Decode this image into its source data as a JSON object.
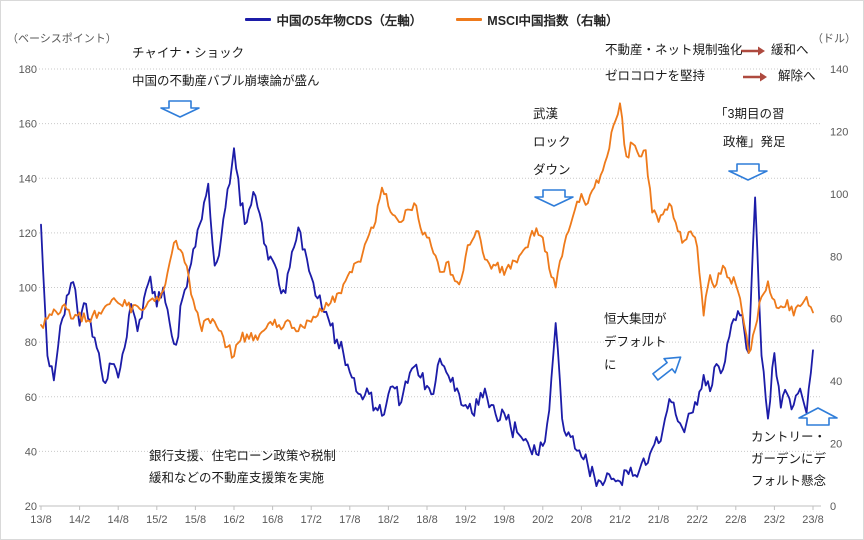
{
  "chart": {
    "background": "#ffffff",
    "gridline_color": "#c9c9c9",
    "axis_line_color": "#bfbfbf",
    "axis_text_color": "#595959",
    "annotation_text_color": "#1a1a1a",
    "blue_arrow_color": "#2f7dd9",
    "red_arrow_color": "#ae4a3f"
  },
  "chart_data": {
    "type": "line",
    "title": "",
    "grid": "horizontal-dotted",
    "legend_position": "top-center",
    "x_start_label": "13/8",
    "x_end_label": "23/8",
    "x_interval_months": 1,
    "x_tick_labels": [
      "13/8",
      "14/2",
      "14/8",
      "15/2",
      "15/8",
      "16/2",
      "16/8",
      "17/2",
      "17/8",
      "18/2",
      "18/8",
      "19/2",
      "19/8",
      "20/2",
      "20/8",
      "21/2",
      "21/8",
      "22/2",
      "22/8",
      "23/2",
      "23/8"
    ],
    "left_axis": {
      "unit": "（ベーシスポイント）",
      "ticks": [
        180,
        160,
        140,
        120,
        100,
        80,
        60,
        40,
        20
      ],
      "range": [
        20,
        180
      ]
    },
    "right_axis": {
      "unit": "（ドル）",
      "ticks": [
        140,
        120,
        100,
        80,
        60,
        40,
        20,
        0
      ],
      "range": [
        0,
        140
      ]
    },
    "series": [
      {
        "name": "中国の5年物CDS（左軸）",
        "axis": "left",
        "color": "#1c1ca8",
        "noise": 3.2,
        "seed": 1,
        "monthly_values": [
          123,
          75,
          66,
          86,
          97,
          102,
          86,
          94,
          82,
          76,
          65,
          72,
          67,
          78,
          94,
          84,
          96,
          104,
          93,
          100,
          87,
          79,
          96,
          106,
          115,
          125,
          138,
          108,
          118,
          136,
          151,
          130,
          124,
          135,
          127,
          115,
          110,
          101,
          98,
          113,
          122,
          114,
          104,
          96,
          91,
          86,
          81,
          76,
          69,
          62,
          59,
          61,
          56,
          53,
          61,
          63,
          58,
          65,
          71,
          67,
          64,
          61,
          74,
          69,
          67,
          61,
          57,
          54,
          57,
          63,
          57,
          51,
          54,
          49,
          47,
          44,
          41,
          39,
          42,
          55,
          87,
          52,
          47,
          41,
          38,
          35,
          31,
          29,
          32,
          30,
          29,
          33,
          31,
          33,
          35,
          41,
          43,
          52,
          58,
          51,
          47,
          54,
          57,
          68,
          62,
          72,
          70,
          82,
          88,
          90,
          76,
          133,
          75,
          52,
          76,
          56,
          61,
          57,
          63,
          54,
          77
        ]
      },
      {
        "name": "MSCI中国指数（右軸）",
        "axis": "right",
        "color": "#ee7a1b",
        "noise": 2.0,
        "seed": 2,
        "monthly_values": [
          58,
          60,
          63,
          62,
          63,
          60,
          62,
          59,
          61,
          62,
          64,
          66,
          65,
          66,
          62,
          64,
          63,
          66,
          67,
          69,
          78,
          85,
          81,
          73,
          63,
          56,
          60,
          59,
          56,
          51,
          48,
          53,
          55,
          53,
          55,
          57,
          58,
          58,
          59,
          57,
          56,
          57,
          59,
          61,
          63,
          65,
          68,
          71,
          75,
          78,
          81,
          87,
          91,
          102,
          96,
          93,
          91,
          95,
          97,
          89,
          86,
          81,
          75,
          78,
          74,
          71,
          80,
          85,
          88,
          79,
          76,
          78,
          74,
          76,
          78,
          82,
          86,
          89,
          86,
          76,
          70,
          80,
          88,
          95,
          100,
          97,
          102,
          106,
          112,
          122,
          129,
          112,
          116,
          112,
          114,
          94,
          91,
          95,
          96,
          88,
          85,
          88,
          83,
          61,
          74,
          71,
          77,
          73,
          71,
          62,
          49,
          57,
          67,
          72,
          66,
          64,
          66,
          61,
          64,
          67,
          62
        ]
      }
    ],
    "annotations": {
      "texts": [
        {
          "text": "チャイナ・ショック",
          "x": 131,
          "y": 45
        },
        {
          "text": "中国の不動産バブル崩壊論が盛ん",
          "x": 131,
          "y": 73
        },
        {
          "text": "武漢",
          "x": 532,
          "y": 106
        },
        {
          "text": "ロック",
          "x": 532,
          "y": 134
        },
        {
          "text": "ダウン",
          "x": 532,
          "y": 162
        },
        {
          "text": "不動産・ネット規制強化",
          "x": 604,
          "y": 42
        },
        {
          "text": "緩和へ",
          "x": 770,
          "y": 42
        },
        {
          "text": "ゼロコロナを堅持",
          "x": 604,
          "y": 68
        },
        {
          "text": "解除へ",
          "x": 777,
          "y": 68
        },
        {
          "text": "「3期目の習",
          "x": 714,
          "y": 106
        },
        {
          "text": "政権」発足",
          "x": 722,
          "y": 134
        },
        {
          "text": "恒大集団が",
          "x": 603,
          "y": 311
        },
        {
          "text": "デフォルト",
          "x": 603,
          "y": 334
        },
        {
          "text": "に",
          "x": 603,
          "y": 357
        },
        {
          "text": "カントリー・",
          "x": 750,
          "y": 429
        },
        {
          "text": "ガーデンにデ",
          "x": 750,
          "y": 451
        },
        {
          "text": "フォルト懸念",
          "x": 750,
          "y": 473
        },
        {
          "text": "銀行支援、住宅ローン政策や税制",
          "x": 148,
          "y": 448
        },
        {
          "text": "緩和などの不動産支援策を実施",
          "x": 148,
          "y": 470
        }
      ],
      "blue_arrows": [
        {
          "kind": "down",
          "x": 179,
          "y": 108
        },
        {
          "kind": "down",
          "x": 553,
          "y": 197
        },
        {
          "kind": "down",
          "x": 747,
          "y": 171
        },
        {
          "kind": "ne",
          "x": 667,
          "y": 366
        },
        {
          "kind": "up",
          "x": 817,
          "y": 416
        }
      ],
      "red_arrows": [
        {
          "x1": 740,
          "y1": 50,
          "x2": 764,
          "y2": 50
        },
        {
          "x1": 742,
          "y1": 76,
          "x2": 766,
          "y2": 76
        }
      ]
    }
  }
}
